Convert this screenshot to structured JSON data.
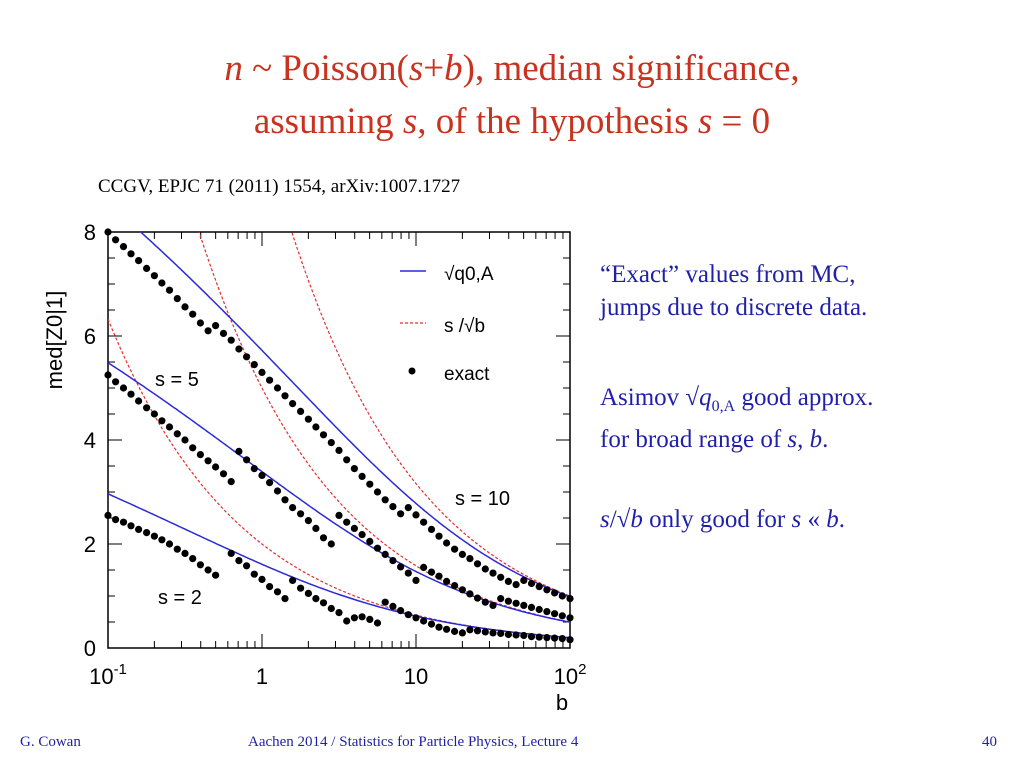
{
  "slide": {
    "title_line1": {
      "pre": "n",
      "mid": " ~ Poisson(",
      "s": "s",
      "plus": "+",
      "b": "b",
      "post": "),  median significance,"
    },
    "title_line2": {
      "pre": "assuming ",
      "s": "s",
      "mid": ", of the hypothesis ",
      "s2": "s",
      "post": " = 0"
    },
    "citation": "CCGV, EPJC 71 (2011) 1554, arXiv:1007.1727",
    "notes": {
      "exact_line1": "“Exact” values from MC,",
      "exact_line2": "jumps due to discrete data.",
      "asimov_pre": "Asimov √",
      "asimov_q": "q",
      "asimov_sub": "0,A",
      "asimov_post": " good approx.",
      "asimov_line2_pre": "for broad range of ",
      "asimov_s": "s",
      "asimov_comma": ", ",
      "asimov_b": "b",
      "asimov_dot": ".",
      "sb_s": "s",
      "sb_mid": "/√",
      "sb_b": "b",
      "sb_only": " only good for ",
      "sb_s2": "s",
      "sb_ll": " « ",
      "sb_b2": "b",
      "sb_dot": "."
    },
    "footer_left": "G. Cowan",
    "footer_center": "Aachen 2014 / Statistics for Particle Physics, Lecture 4",
    "page_number": "40"
  },
  "chart_data": {
    "type": "line",
    "ylabel": "med[Z0|1]",
    "xlabel": "b",
    "x_scale": "log",
    "xlim": [
      0.1,
      100
    ],
    "ylim": [
      0,
      8
    ],
    "x_ticks": [
      "10-1",
      "1",
      "10",
      "102"
    ],
    "y_ticks": [
      "0",
      "2",
      "4",
      "6",
      "8"
    ],
    "legend": [
      {
        "label": "√q0,A",
        "style": "solid",
        "color": "#2a2ad8"
      },
      {
        "label": "s /√b",
        "style": "dashed",
        "color": "#e03030"
      },
      {
        "label": "exact",
        "style": "dots",
        "color": "#000000"
      }
    ],
    "series_labels": [
      "s = 2",
      "s = 5",
      "s = 10"
    ],
    "s_values": [
      2,
      5,
      10
    ],
    "exact": [
      {
        "s": 2,
        "b": [
          0.1,
          0.112,
          0.126,
          0.141,
          0.158,
          0.178,
          0.2,
          0.224,
          0.251,
          0.282,
          0.316,
          0.355,
          0.398,
          0.447,
          0.5,
          0.631,
          0.708,
          0.794,
          0.891,
          1.0,
          1.12,
          1.26,
          1.41,
          1.58,
          1.78,
          2.0,
          2.24,
          2.51,
          2.82,
          3.16,
          3.55,
          3.98,
          4.47,
          5.01,
          5.62,
          6.31,
          7.08,
          7.94,
          8.91,
          10,
          11.2,
          12.6,
          14.1,
          15.8,
          17.8,
          20,
          22.4,
          25.1,
          28.2,
          31.6,
          35.5,
          39.8,
          44.7,
          50.1,
          56.2,
          63.1,
          70.8,
          79.4,
          89.1,
          100
        ],
        "z": [
          2.55,
          2.47,
          2.42,
          2.35,
          2.28,
          2.22,
          2.15,
          2.08,
          2.0,
          1.9,
          1.82,
          1.72,
          1.6,
          1.5,
          1.4,
          1.82,
          1.68,
          1.58,
          1.42,
          1.32,
          1.18,
          1.08,
          0.95,
          1.3,
          1.15,
          1.05,
          0.95,
          0.87,
          0.76,
          0.68,
          0.52,
          0.58,
          0.6,
          0.55,
          0.48,
          0.88,
          0.8,
          0.72,
          0.64,
          0.58,
          0.52,
          0.46,
          0.4,
          0.36,
          0.32,
          0.29,
          0.35,
          0.33,
          0.31,
          0.29,
          0.28,
          0.26,
          0.25,
          0.24,
          0.22,
          0.21,
          0.2,
          0.19,
          0.18,
          0.16
        ]
      },
      {
        "s": 5,
        "b": [
          0.1,
          0.112,
          0.126,
          0.141,
          0.158,
          0.178,
          0.2,
          0.224,
          0.251,
          0.282,
          0.316,
          0.355,
          0.398,
          0.447,
          0.5,
          0.562,
          0.631,
          0.708,
          0.794,
          0.891,
          1.0,
          1.12,
          1.26,
          1.41,
          1.58,
          1.78,
          2.0,
          2.24,
          2.51,
          2.82,
          3.16,
          3.55,
          3.98,
          4.47,
          5.01,
          5.62,
          6.31,
          7.08,
          7.94,
          8.91,
          10,
          11.2,
          12.6,
          14.1,
          15.8,
          17.8,
          20,
          22.4,
          25.1,
          28.2,
          31.6,
          35.5,
          39.8,
          44.7,
          50.1,
          56.2,
          63.1,
          70.8,
          79.4,
          89.1,
          100
        ],
        "z": [
          5.25,
          5.12,
          5.0,
          4.88,
          4.75,
          4.62,
          4.5,
          4.37,
          4.25,
          4.12,
          4.0,
          3.85,
          3.72,
          3.6,
          3.48,
          3.35,
          3.2,
          3.78,
          3.62,
          3.45,
          3.32,
          3.18,
          3.02,
          2.85,
          2.7,
          2.58,
          2.45,
          2.3,
          2.12,
          2.0,
          2.55,
          2.42,
          2.3,
          2.18,
          2.05,
          1.92,
          1.8,
          1.68,
          1.56,
          1.44,
          1.3,
          1.55,
          1.46,
          1.38,
          1.28,
          1.2,
          1.12,
          1.04,
          0.96,
          0.88,
          0.82,
          0.95,
          0.9,
          0.86,
          0.82,
          0.78,
          0.74,
          0.7,
          0.66,
          0.62,
          0.58
        ]
      },
      {
        "s": 10,
        "b": [
          0.1,
          0.112,
          0.126,
          0.141,
          0.158,
          0.178,
          0.2,
          0.224,
          0.251,
          0.282,
          0.316,
          0.355,
          0.398,
          0.447,
          0.5,
          0.562,
          0.631,
          0.708,
          0.794,
          0.891,
          1.0,
          1.12,
          1.26,
          1.41,
          1.58,
          1.78,
          2.0,
          2.24,
          2.51,
          2.82,
          3.16,
          3.55,
          3.98,
          4.47,
          5.01,
          5.62,
          6.31,
          7.08,
          7.94,
          8.91,
          10,
          11.2,
          12.6,
          14.1,
          15.8,
          17.8,
          20,
          22.4,
          25.1,
          28.2,
          31.6,
          35.5,
          39.8,
          44.7,
          50.1,
          56.2,
          63.1,
          70.8,
          79.4,
          89.1,
          100
        ],
        "z": [
          8.0,
          7.85,
          7.72,
          7.58,
          7.45,
          7.3,
          7.16,
          7.02,
          6.88,
          6.72,
          6.56,
          6.42,
          6.25,
          6.1,
          6.2,
          6.05,
          5.92,
          5.75,
          5.6,
          5.45,
          5.3,
          5.15,
          5.0,
          4.85,
          4.7,
          4.55,
          4.4,
          4.25,
          4.1,
          3.95,
          3.8,
          3.62,
          3.45,
          3.3,
          3.15,
          3.0,
          2.85,
          2.72,
          2.58,
          2.7,
          2.56,
          2.42,
          2.28,
          2.15,
          2.02,
          1.9,
          1.8,
          1.72,
          1.62,
          1.52,
          1.44,
          1.36,
          1.28,
          1.22,
          1.3,
          1.24,
          1.18,
          1.12,
          1.06,
          1.0,
          0.95
        ]
      }
    ]
  }
}
